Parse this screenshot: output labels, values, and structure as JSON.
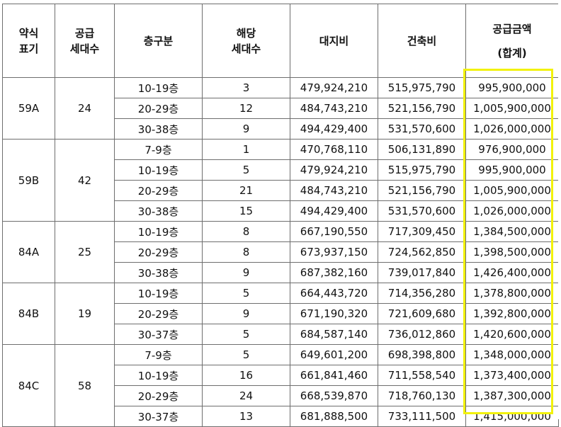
{
  "headers": {
    "type_code": "약식\n표기",
    "supply_units": "공급\n세대수",
    "floor_group": "층구분",
    "applicable_units": "해당\n세대수",
    "land_cost": "대지비",
    "building_cost": "건축비",
    "total_supply": "공급금액\n(합계)"
  },
  "groups": [
    {
      "type": "59A",
      "units": "24",
      "rows": [
        {
          "floor": "10-19층",
          "count": "3",
          "land": "479,924,210",
          "building": "515,975,790",
          "total": "995,900,000"
        },
        {
          "floor": "20-29층",
          "count": "12",
          "land": "484,743,210",
          "building": "521,156,790",
          "total": "1,005,900,000"
        },
        {
          "floor": "30-38층",
          "count": "9",
          "land": "494,429,400",
          "building": "531,570,600",
          "total": "1,026,000,000"
        }
      ]
    },
    {
      "type": "59B",
      "units": "42",
      "rows": [
        {
          "floor": "7-9층",
          "count": "1",
          "land": "470,768,110",
          "building": "506,131,890",
          "total": "976,900,000"
        },
        {
          "floor": "10-19층",
          "count": "5",
          "land": "479,924,210",
          "building": "515,975,790",
          "total": "995,900,000"
        },
        {
          "floor": "20-29층",
          "count": "21",
          "land": "484,743,210",
          "building": "521,156,790",
          "total": "1,005,900,000"
        },
        {
          "floor": "30-38층",
          "count": "15",
          "land": "494,429,400",
          "building": "531,570,600",
          "total": "1,026,000,000"
        }
      ]
    },
    {
      "type": "84A",
      "units": "25",
      "rows": [
        {
          "floor": "10-19층",
          "count": "8",
          "land": "667,190,550",
          "building": "717,309,450",
          "total": "1,384,500,000"
        },
        {
          "floor": "20-29층",
          "count": "8",
          "land": "673,937,150",
          "building": "724,562,850",
          "total": "1,398,500,000"
        },
        {
          "floor": "30-38층",
          "count": "9",
          "land": "687,382,160",
          "building": "739,017,840",
          "total": "1,426,400,000"
        }
      ]
    },
    {
      "type": "84B",
      "units": "19",
      "rows": [
        {
          "floor": "10-19층",
          "count": "5",
          "land": "664,443,720",
          "building": "714,356,280",
          "total": "1,378,800,000"
        },
        {
          "floor": "20-29층",
          "count": "9",
          "land": "671,190,320",
          "building": "721,609,680",
          "total": "1,392,800,000"
        },
        {
          "floor": "30-37층",
          "count": "5",
          "land": "684,587,140",
          "building": "736,012,860",
          "total": "1,420,600,000"
        }
      ]
    },
    {
      "type": "84C",
      "units": "58",
      "rows": [
        {
          "floor": "7-9층",
          "count": "5",
          "land": "649,601,200",
          "building": "698,398,800",
          "total": "1,348,000,000"
        },
        {
          "floor": "10-19층",
          "count": "16",
          "land": "661,841,460",
          "building": "711,558,540",
          "total": "1,373,400,000"
        },
        {
          "floor": "20-29층",
          "count": "24",
          "land": "668,539,870",
          "building": "718,760,130",
          "total": "1,387,300,000"
        },
        {
          "floor": "30-37층",
          "count": "13",
          "land": "681,888,500",
          "building": "733,111,500",
          "total": "1,415,000,000"
        }
      ]
    }
  ],
  "highlight_color": "#f2f20a"
}
